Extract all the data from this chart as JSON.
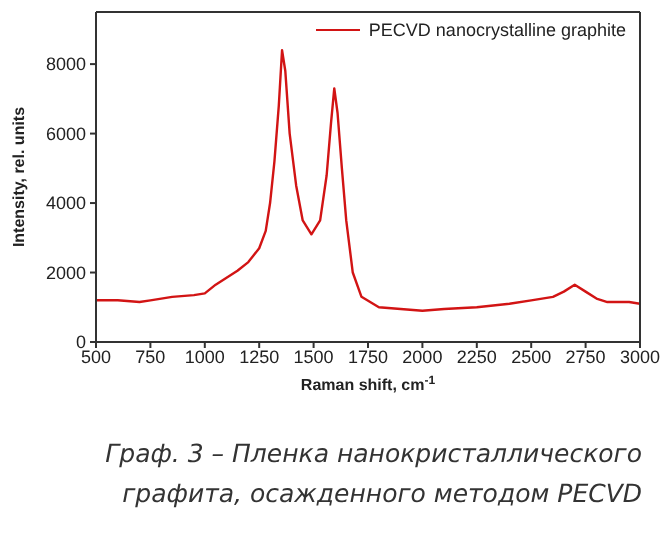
{
  "chart_data": {
    "type": "line",
    "xlabel": "Raman shift, cm$^{-1}$",
    "ylabel": "Intensity, rel. units",
    "x": [
      500,
      600,
      700,
      750,
      850,
      950,
      1000,
      1050,
      1100,
      1150,
      1200,
      1250,
      1280,
      1300,
      1320,
      1340,
      1355,
      1370,
      1390,
      1420,
      1450,
      1490,
      1530,
      1560,
      1580,
      1595,
      1610,
      1630,
      1650,
      1680,
      1720,
      1800,
      1900,
      2000,
      2100,
      2250,
      2400,
      2500,
      2600,
      2650,
      2700,
      2750,
      2800,
      2850,
      2950,
      3000
    ],
    "series": [
      {
        "name": "PECVD nanocrystalline graphite",
        "color": "#d21414",
        "values": [
          1200,
          1200,
          1150,
          1200,
          1300,
          1350,
          1400,
          1650,
          1850,
          2050,
          2300,
          2700,
          3200,
          4000,
          5200,
          6800,
          8400,
          7800,
          6000,
          4500,
          3500,
          3100,
          3500,
          4800,
          6300,
          7300,
          6600,
          5000,
          3500,
          2000,
          1300,
          1000,
          950,
          900,
          950,
          1000,
          1100,
          1200,
          1300,
          1450,
          1650,
          1450,
          1250,
          1150,
          1150,
          1100
        ]
      }
    ],
    "xlim": [
      500,
      3000
    ],
    "xticks": [
      500,
      750,
      1000,
      1250,
      1500,
      1750,
      2000,
      2250,
      2500,
      2750,
      3000
    ],
    "ylim": [
      0,
      9500
    ],
    "yticks": [
      0,
      2000,
      4000,
      6000,
      8000
    ],
    "grid": false,
    "legend": "top right",
    "marker": "none",
    "line_style": "solid",
    "annotations": [
      "Граф. 3 – Пленка нанокристаллического графита, осажденного методом PECVD"
    ]
  }
}
